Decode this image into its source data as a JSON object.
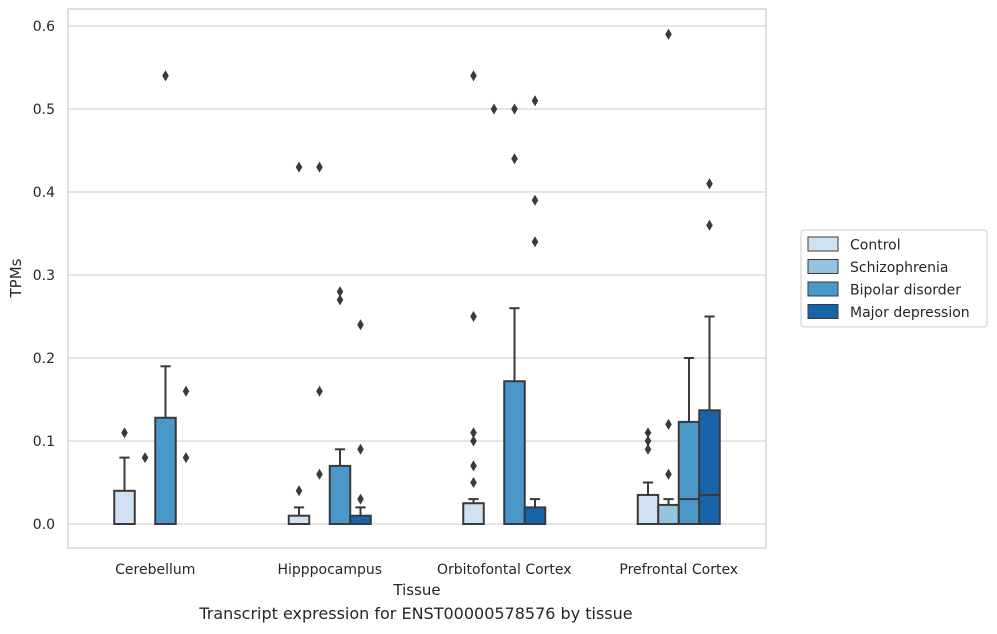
{
  "caption": "Transcript expression for ENST00000578576 by tissue",
  "colors": {
    "Control": "#d0e1f2",
    "Schizophrenia": "#94c4df",
    "Bipolar disorder": "#4a98c9",
    "Major depression": "#1764ab",
    "edge": "#3a3a3a",
    "grid": "#d5d5d5"
  },
  "chart_data": {
    "type": "box",
    "xlabel": "Tissue",
    "ylabel": "TPMs",
    "ylim": [
      -0.028,
      0.62
    ],
    "yticks": [
      0.0,
      0.1,
      0.2,
      0.3,
      0.4,
      0.5,
      0.6
    ],
    "ytick_labels": [
      "0.0",
      "0.1",
      "0.2",
      "0.3",
      "0.4",
      "0.5",
      "0.6"
    ],
    "grid": "horizontal",
    "legend_position": "right",
    "categories": [
      "Cerebellum",
      "Hipppocampus",
      "Orbitofontal Cortex",
      "Prefrontal Cortex"
    ],
    "series": [
      {
        "name": "Control",
        "boxes": [
          {
            "q1": 0.0,
            "median": 0.0,
            "q3": 0.04,
            "whisker_low": 0.0,
            "whisker_high": 0.08,
            "outliers": [
              0.11
            ]
          },
          {
            "q1": 0.0,
            "median": 0.0,
            "q3": 0.01,
            "whisker_low": 0.0,
            "whisker_high": 0.02,
            "outliers": [
              0.04,
              0.43
            ]
          },
          {
            "q1": 0.0,
            "median": 0.0,
            "q3": 0.025,
            "whisker_low": 0.0,
            "whisker_high": 0.03,
            "outliers": [
              0.05,
              0.07,
              0.1,
              0.11,
              0.25,
              0.54
            ]
          },
          {
            "q1": 0.0,
            "median": 0.0,
            "q3": 0.035,
            "whisker_low": 0.0,
            "whisker_high": 0.05,
            "outliers": [
              0.09,
              0.1,
              0.11
            ]
          }
        ]
      },
      {
        "name": "Schizophrenia",
        "boxes": [
          {
            "q1": 0.0,
            "median": 0.0,
            "q3": 0.0,
            "whisker_low": 0.0,
            "whisker_high": 0.0,
            "outliers": [
              0.08
            ]
          },
          {
            "q1": 0.0,
            "median": 0.0,
            "q3": 0.0,
            "whisker_low": 0.0,
            "whisker_high": 0.0,
            "outliers": [
              0.06,
              0.16,
              0.43
            ]
          },
          {
            "q1": 0.0,
            "median": 0.0,
            "q3": 0.0,
            "whisker_low": 0.0,
            "whisker_high": 0.0,
            "outliers": [
              0.5
            ]
          },
          {
            "q1": 0.0,
            "median": 0.0,
            "q3": 0.023,
            "whisker_low": 0.0,
            "whisker_high": 0.03,
            "outliers": [
              0.06,
              0.12,
              0.59
            ]
          }
        ]
      },
      {
        "name": "Bipolar disorder",
        "boxes": [
          {
            "q1": 0.0,
            "median": 0.0,
            "q3": 0.128,
            "whisker_low": 0.0,
            "whisker_high": 0.19,
            "outliers": [
              0.54
            ]
          },
          {
            "q1": 0.0,
            "median": 0.0,
            "q3": 0.07,
            "whisker_low": 0.0,
            "whisker_high": 0.09,
            "outliers": [
              0.27,
              0.28
            ]
          },
          {
            "q1": 0.0,
            "median": 0.0,
            "q3": 0.172,
            "whisker_low": 0.0,
            "whisker_high": 0.26,
            "outliers": [
              0.44,
              0.5
            ]
          },
          {
            "q1": 0.0,
            "median": 0.03,
            "q3": 0.123,
            "whisker_low": 0.0,
            "whisker_high": 0.2,
            "outliers": []
          }
        ]
      },
      {
        "name": "Major depression",
        "boxes": [
          {
            "q1": 0.0,
            "median": 0.0,
            "q3": 0.0,
            "whisker_low": 0.0,
            "whisker_high": 0.0,
            "outliers": [
              0.08,
              0.16
            ]
          },
          {
            "q1": 0.0,
            "median": 0.0,
            "q3": 0.01,
            "whisker_low": 0.0,
            "whisker_high": 0.02,
            "outliers": [
              0.03,
              0.09,
              0.24
            ]
          },
          {
            "q1": 0.0,
            "median": 0.0,
            "q3": 0.02,
            "whisker_low": 0.0,
            "whisker_high": 0.03,
            "outliers": [
              0.34,
              0.39,
              0.51
            ]
          },
          {
            "q1": 0.0,
            "median": 0.035,
            "q3": 0.137,
            "whisker_low": 0.0,
            "whisker_high": 0.25,
            "outliers": [
              0.36,
              0.41
            ]
          }
        ]
      }
    ]
  }
}
